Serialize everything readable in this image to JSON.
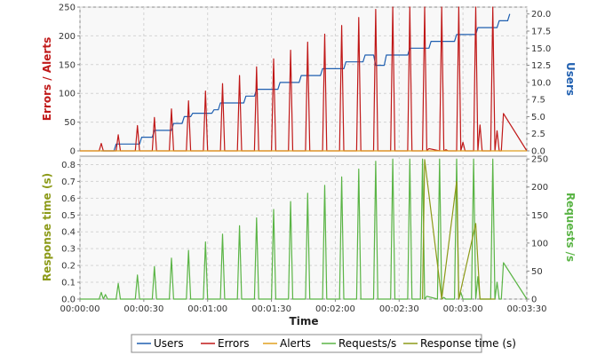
{
  "colors": {
    "users": "#1f5fb0",
    "errors": "#c01818",
    "alerts": "#e0a020",
    "requests": "#5ab445",
    "response": "#8c9a18",
    "grid": "#d4d4d4",
    "plot_bg": "#f8f8f8"
  },
  "chart_data": [
    {
      "type": "line",
      "panel": "top",
      "xlim": [
        0,
        210
      ],
      "y_left": {
        "label": "Errors / Alerts",
        "ylim": [
          0,
          250
        ],
        "ticks": [
          "0",
          "50",
          "100",
          "150",
          "200",
          "250"
        ]
      },
      "y_right": {
        "label": "Users",
        "ylim": [
          0,
          21
        ],
        "ticks": [
          "0.0",
          "2.5",
          "5.0",
          "7.5",
          "10.0",
          "12.5",
          "15.0",
          "17.5",
          "20.0"
        ]
      },
      "series": [
        {
          "name": "Users",
          "axis": "right",
          "x": [
            10,
            16,
            17,
            28,
            29,
            34,
            35,
            43,
            44,
            48,
            49,
            52,
            53,
            62,
            63,
            65,
            66,
            77,
            78,
            82,
            83,
            93,
            94,
            103,
            104,
            113,
            114,
            124,
            125,
            133,
            134,
            138,
            139,
            143,
            144,
            154,
            155,
            164,
            165,
            176,
            177,
            186,
            187,
            196,
            197,
            201,
            202
          ],
          "y": [
            0,
            0,
            1,
            1,
            2,
            2,
            3,
            3,
            4,
            4,
            5,
            5,
            5.5,
            5.5,
            6,
            6,
            7,
            7,
            8,
            8,
            9,
            9,
            10,
            10,
            11,
            11,
            12,
            12,
            13,
            13,
            14,
            14,
            12.5,
            12.5,
            14,
            14,
            15,
            15,
            16,
            16,
            17,
            17,
            18,
            18,
            19,
            19,
            20
          ]
        },
        {
          "name": "Errors",
          "axis": "left",
          "x": [
            0,
            9,
            10,
            11,
            17,
            18,
            19,
            26,
            27,
            28,
            34,
            35,
            36,
            42,
            43,
            44,
            50,
            51,
            52,
            58,
            59,
            60,
            66,
            67,
            68,
            74,
            75,
            76,
            82,
            83,
            84,
            90,
            91,
            92,
            98,
            99,
            100,
            106,
            107,
            108,
            114,
            115,
            116,
            122,
            123,
            124,
            130,
            131,
            132,
            138,
            139,
            140,
            146,
            147,
            148,
            154,
            155,
            156,
            161,
            162,
            163,
            164,
            169,
            170,
            171,
            172,
            173,
            177,
            178,
            179,
            180,
            181,
            185,
            186,
            187,
            188,
            189,
            193,
            194,
            195,
            196,
            197,
            198,
            199,
            210
          ],
          "y": [
            0,
            0,
            13,
            0,
            0,
            28,
            0,
            0,
            44,
            0,
            0,
            58,
            0,
            0,
            73,
            0,
            0,
            87,
            0,
            0,
            104,
            0,
            0,
            117,
            0,
            0,
            131,
            0,
            0,
            146,
            0,
            0,
            160,
            0,
            0,
            175,
            0,
            0,
            189,
            0,
            0,
            203,
            0,
            0,
            218,
            0,
            0,
            232,
            0,
            0,
            246,
            0,
            0,
            250,
            0,
            0,
            250,
            0,
            0,
            250,
            0,
            4,
            0,
            250,
            0,
            2,
            0,
            0,
            250,
            0,
            15,
            0,
            0,
            250,
            0,
            45,
            0,
            0,
            250,
            0,
            35,
            0,
            0,
            65,
            0
          ]
        },
        {
          "name": "Alerts",
          "axis": "left",
          "x": [
            0,
            210
          ],
          "y": [
            0,
            0
          ]
        }
      ]
    },
    {
      "type": "line",
      "panel": "bottom",
      "xlim": [
        0,
        210
      ],
      "xlabel": "Time",
      "x_ticks": [
        "00:00:00",
        "00:00:30",
        "00:01:00",
        "00:01:30",
        "00:02:00",
        "00:02:30",
        "00:03:00",
        "00:03:30"
      ],
      "y_left": {
        "label": "Response time (s)",
        "ylim": [
          0,
          0.85
        ],
        "ticks": [
          "0.0",
          "0.1",
          "0.2",
          "0.3",
          "0.4",
          "0.5",
          "0.6",
          "0.7",
          "0.8"
        ]
      },
      "y_right": {
        "label": "Requests /s",
        "ylim": [
          0,
          255
        ],
        "ticks": [
          "0",
          "50",
          "100",
          "150",
          "200",
          "250"
        ]
      },
      "series": [
        {
          "name": "Requests/s",
          "axis": "right",
          "x": [
            0,
            9,
            10,
            11,
            12,
            13,
            17,
            18,
            19,
            26,
            27,
            28,
            34,
            35,
            36,
            42,
            43,
            44,
            50,
            51,
            52,
            58,
            59,
            60,
            66,
            67,
            68,
            74,
            75,
            76,
            82,
            83,
            84,
            90,
            91,
            92,
            98,
            99,
            100,
            106,
            107,
            108,
            114,
            115,
            116,
            122,
            123,
            124,
            130,
            131,
            132,
            138,
            139,
            140,
            146,
            147,
            148,
            154,
            155,
            156,
            160,
            161,
            162,
            163,
            168,
            169,
            170,
            171,
            172,
            176,
            177,
            178,
            179,
            180,
            184,
            185,
            186,
            187,
            188,
            193,
            194,
            195,
            196,
            197,
            198,
            199,
            210
          ],
          "y": [
            0,
            0,
            12,
            0,
            8,
            0,
            0,
            28,
            0,
            0,
            43,
            0,
            0,
            58,
            0,
            0,
            73,
            0,
            0,
            87,
            0,
            0,
            102,
            0,
            0,
            116,
            0,
            0,
            131,
            0,
            0,
            145,
            0,
            0,
            160,
            0,
            0,
            174,
            0,
            0,
            189,
            0,
            0,
            203,
            0,
            0,
            218,
            0,
            0,
            232,
            0,
            0,
            246,
            0,
            0,
            250,
            0,
            0,
            250,
            0,
            0,
            250,
            0,
            5,
            0,
            250,
            0,
            3,
            0,
            0,
            250,
            0,
            12,
            0,
            0,
            250,
            0,
            40,
            0,
            0,
            250,
            0,
            30,
            0,
            0,
            65,
            0
          ]
        },
        {
          "name": "Response time (s)",
          "axis": "left",
          "x": [
            161,
            162,
            170,
            177,
            178,
            186,
            188,
            195
          ],
          "y": [
            0,
            0.83,
            0.0,
            0.7,
            0.0,
            0.45,
            0.0,
            0.0
          ]
        }
      ]
    }
  ],
  "legend": {
    "items": [
      {
        "label": "Users",
        "key": "users"
      },
      {
        "label": "Errors",
        "key": "errors"
      },
      {
        "label": "Alerts",
        "key": "alerts"
      },
      {
        "label": "Requests/s",
        "key": "requests"
      },
      {
        "label": "Response time (s)",
        "key": "response"
      }
    ]
  }
}
